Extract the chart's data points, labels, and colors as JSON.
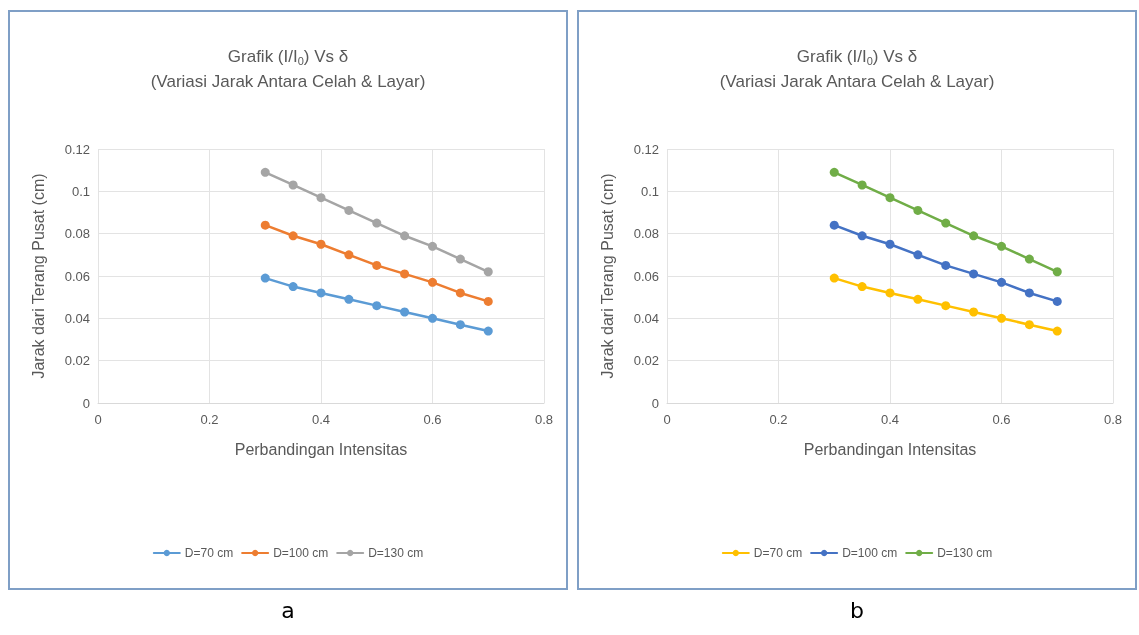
{
  "chart_data": [
    {
      "type": "line",
      "title": "Grafik (I/I$_{0}$) Vs δ",
      "subtitle": "(Variasi Jarak Antara Celah & Layar)",
      "xlabel": "Perbandingan Intensitas",
      "ylabel": "Jarak dari Terang Pusat (cm)",
      "annotations": [
        "a"
      ],
      "x": [
        0.3,
        0.35,
        0.4,
        0.45,
        0.5,
        0.55,
        0.6,
        0.65,
        0.7
      ],
      "series": [
        {
          "name": "D=70 cm",
          "color": "#5b9bd5",
          "values": [
            0.059,
            0.055,
            0.052,
            0.049,
            0.046,
            0.043,
            0.04,
            0.037,
            0.034
          ]
        },
        {
          "name": "D=100 cm",
          "color": "#ed7d31",
          "values": [
            0.084,
            0.079,
            0.075,
            0.07,
            0.065,
            0.061,
            0.057,
            0.052,
            0.048
          ]
        },
        {
          "name": "D=130 cm",
          "color": "#a5a5a5",
          "values": [
            0.109,
            0.103,
            0.097,
            0.091,
            0.085,
            0.079,
            0.074,
            0.068,
            0.062
          ]
        }
      ],
      "xlim": [
        0,
        0.8
      ],
      "xticks": [
        0,
        0.2,
        0.4,
        0.6,
        0.8
      ],
      "ylim": [
        0,
        0.12
      ],
      "yticks": [
        0,
        0.02,
        0.04,
        0.06,
        0.08,
        0.1,
        0.12
      ],
      "grid": true,
      "legend": "bottom",
      "marker": "circle",
      "line_style": "solid"
    },
    {
      "type": "line",
      "title": "Grafik (I/I$_{0}$) Vs δ",
      "subtitle": "(Variasi Jarak Antara Celah & Layar)",
      "xlabel": "Perbandingan Intensitas",
      "ylabel": "Jarak dari Terang Pusat (cm)",
      "annotations": [
        "b"
      ],
      "x": [
        0.3,
        0.35,
        0.4,
        0.45,
        0.5,
        0.55,
        0.6,
        0.65,
        0.7
      ],
      "series": [
        {
          "name": "D=70 cm",
          "color": "#ffc000",
          "values": [
            0.059,
            0.055,
            0.052,
            0.049,
            0.046,
            0.043,
            0.04,
            0.037,
            0.034
          ]
        },
        {
          "name": "D=100 cm",
          "color": "#4472c4",
          "values": [
            0.084,
            0.079,
            0.075,
            0.07,
            0.065,
            0.061,
            0.057,
            0.052,
            0.048
          ]
        },
        {
          "name": "D=130 cm",
          "color": "#70ad47",
          "values": [
            0.109,
            0.103,
            0.097,
            0.091,
            0.085,
            0.079,
            0.074,
            0.068,
            0.062
          ]
        }
      ],
      "xlim": [
        0,
        0.8
      ],
      "xticks": [
        0,
        0.2,
        0.4,
        0.6,
        0.8
      ],
      "ylim": [
        0,
        0.12
      ],
      "yticks": [
        0,
        0.02,
        0.04,
        0.06,
        0.08,
        0.1,
        0.12
      ],
      "grid": true,
      "legend": "bottom",
      "marker": "circle",
      "line_style": "solid"
    }
  ]
}
